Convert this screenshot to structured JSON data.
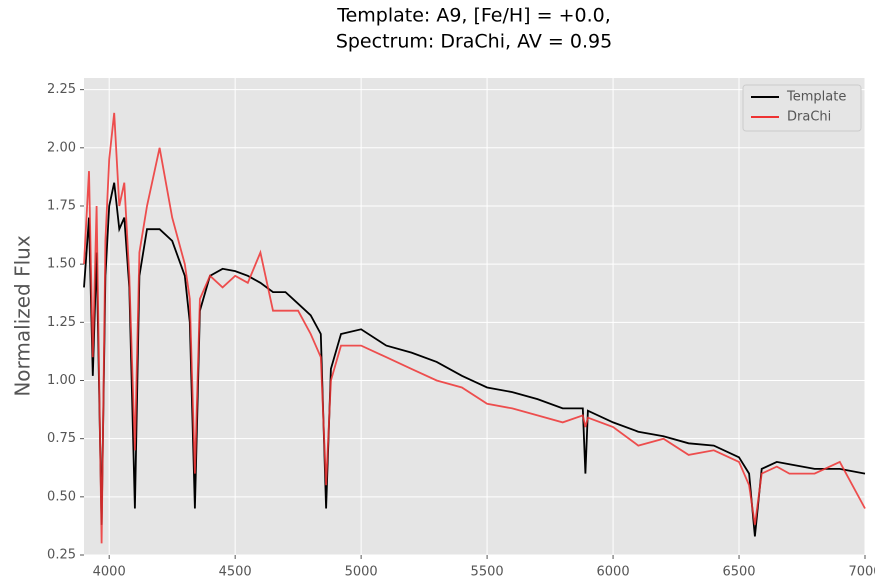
{
  "chart_data": {
    "type": "line",
    "title": [
      "Template: A9, [Fe/H] = +0.0,",
      "Spectrum: DraChi, AV = 0.95"
    ],
    "y_label": "Normalized Flux",
    "x": [
      3900,
      3920,
      3935,
      3950,
      3970,
      3985,
      4000,
      4020,
      4040,
      4060,
      4080,
      4102,
      4120,
      4150,
      4200,
      4250,
      4300,
      4320,
      4340,
      4360,
      4400,
      4450,
      4500,
      4550,
      4600,
      4650,
      4700,
      4750,
      4800,
      4840,
      4861,
      4880,
      4920,
      5000,
      5100,
      5200,
      5300,
      5400,
      5500,
      5600,
      5700,
      5800,
      5880,
      5890,
      5900,
      6000,
      6100,
      6200,
      6300,
      6400,
      6500,
      6540,
      6563,
      6590,
      6650,
      6700,
      6800,
      6900,
      7000
    ],
    "series": [
      {
        "name": "Template",
        "color": "#000000",
        "values": [
          1.4,
          1.7,
          1.02,
          1.55,
          0.38,
          1.45,
          1.75,
          1.85,
          1.65,
          1.7,
          1.4,
          0.45,
          1.45,
          1.65,
          1.65,
          1.6,
          1.45,
          1.25,
          0.45,
          1.3,
          1.45,
          1.48,
          1.47,
          1.45,
          1.42,
          1.38,
          1.38,
          1.33,
          1.28,
          1.2,
          0.45,
          1.05,
          1.2,
          1.22,
          1.15,
          1.12,
          1.08,
          1.02,
          0.97,
          0.95,
          0.92,
          0.88,
          0.88,
          0.6,
          0.87,
          0.82,
          0.78,
          0.76,
          0.73,
          0.72,
          0.67,
          0.6,
          0.33,
          0.62,
          0.65,
          0.64,
          0.62,
          0.62,
          0.6
        ]
      },
      {
        "name": "DraChi",
        "color": "#ee3333",
        "values": [
          1.5,
          1.9,
          1.1,
          1.75,
          0.3,
          1.6,
          1.95,
          2.15,
          1.75,
          1.85,
          1.45,
          0.7,
          1.55,
          1.75,
          2.0,
          1.7,
          1.5,
          1.35,
          0.6,
          1.35,
          1.45,
          1.4,
          1.45,
          1.42,
          1.55,
          1.3,
          1.3,
          1.3,
          1.2,
          1.1,
          0.55,
          1.0,
          1.15,
          1.15,
          1.1,
          1.05,
          1.0,
          0.97,
          0.9,
          0.88,
          0.85,
          0.82,
          0.85,
          0.8,
          0.84,
          0.8,
          0.72,
          0.75,
          0.68,
          0.7,
          0.65,
          0.55,
          0.38,
          0.6,
          0.63,
          0.6,
          0.6,
          0.65,
          0.45
        ]
      }
    ],
    "xlim": [
      3900,
      7000
    ],
    "xticks": [
      4000,
      4500,
      5000,
      5500,
      6000,
      6500,
      7000
    ],
    "ylim": [
      0.25,
      2.3
    ],
    "yticks": [
      0.25,
      {
        "value": 0.5,
        "label": "0.50"
      },
      0.75,
      {
        "value": 1.0,
        "label": "1.00"
      },
      1.25,
      {
        "value": 1.5,
        "label": "1.50"
      },
      1.75,
      {
        "value": 2.0,
        "label": "2.00"
      },
      2.25
    ],
    "grid": true,
    "legend": "upper right"
  }
}
